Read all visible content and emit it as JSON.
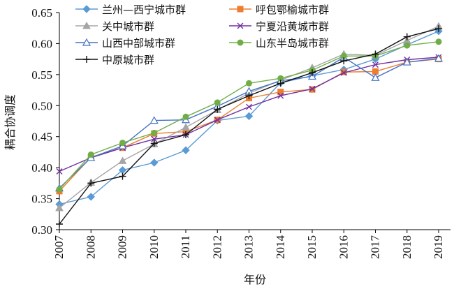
{
  "chart_data": {
    "type": "line",
    "title": "",
    "xlabel": "年份",
    "ylabel": "耦合协调度",
    "x": [
      "2007",
      "2008",
      "2009",
      "2010",
      "2011",
      "2012",
      "2013",
      "2014",
      "2015",
      "2016",
      "2017",
      "2018",
      "2019"
    ],
    "ylim": [
      0.3,
      0.65
    ],
    "yticks": [
      "0.30",
      "0.35",
      "0.40",
      "0.45",
      "0.50",
      "0.55",
      "0.60",
      "0.65"
    ],
    "grid": false,
    "legend_position": "top-left",
    "series": [
      {
        "name": "兰州—西宁城市群",
        "color": "#5b9bd5",
        "marker": "diamond",
        "values": [
          0.341,
          0.353,
          0.396,
          0.408,
          0.428,
          0.476,
          0.483,
          0.537,
          0.548,
          0.558,
          0.575,
          0.598,
          0.62
        ]
      },
      {
        "name": "呼包鄂榆城市群",
        "color": "#ed7d31",
        "marker": "square",
        "values": [
          0.362,
          0.417,
          0.432,
          0.455,
          0.458,
          0.477,
          0.512,
          0.522,
          0.526,
          0.554,
          0.555,
          0.57,
          0.575
        ]
      },
      {
        "name": "关中城市群",
        "color": "#a5a5a5",
        "marker": "triangle",
        "values": [
          0.335,
          0.376,
          0.411,
          0.438,
          0.465,
          0.493,
          0.52,
          0.541,
          0.561,
          0.583,
          0.581,
          0.605,
          0.628
        ]
      },
      {
        "name": "宁夏沿黄城市群",
        "color": "#7030a0",
        "marker": "x",
        "values": [
          0.394,
          0.416,
          0.432,
          0.446,
          0.453,
          0.477,
          0.498,
          0.516,
          0.527,
          0.553,
          0.566,
          0.574,
          0.578
        ]
      },
      {
        "name": "山西中部城市群",
        "color": "#4472c4",
        "marker": "triangle-open",
        "values": [
          0.367,
          0.416,
          0.435,
          0.476,
          0.477,
          0.499,
          0.523,
          0.54,
          0.547,
          0.578,
          0.545,
          0.57,
          0.576
        ]
      },
      {
        "name": "山东半岛城市群",
        "color": "#70ad47",
        "marker": "circle",
        "values": [
          0.365,
          0.421,
          0.44,
          0.456,
          0.482,
          0.505,
          0.536,
          0.544,
          0.557,
          0.58,
          0.58,
          0.597,
          0.603
        ]
      },
      {
        "name": "中原城市群",
        "color": "#111111",
        "marker": "plus",
        "values": [
          0.309,
          0.375,
          0.386,
          0.439,
          0.453,
          0.494,
          0.516,
          0.536,
          0.553,
          0.572,
          0.583,
          0.611,
          0.624
        ]
      }
    ]
  }
}
